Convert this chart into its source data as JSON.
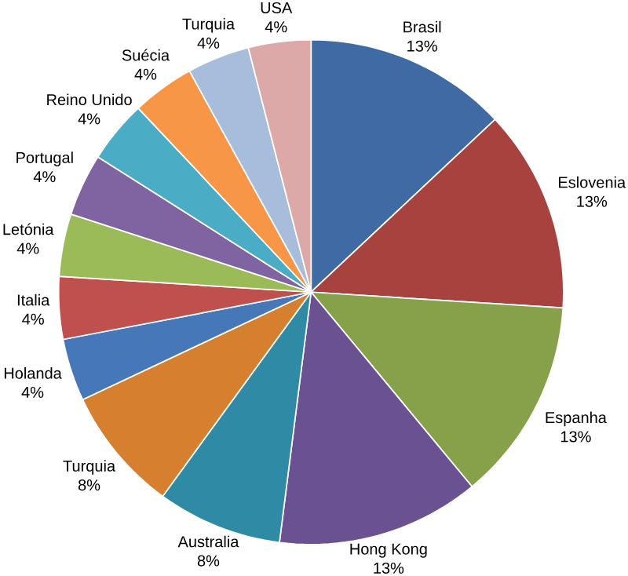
{
  "chart_data": {
    "type": "pie",
    "categories": [
      "Brasil",
      "Eslovenia",
      "Espanha",
      "Hong Kong",
      "Australia",
      "Turquia",
      "Holanda",
      "Italia",
      "Letónia",
      "Portugal",
      "Reino Unido",
      "Suécia",
      "Turquia",
      "USA"
    ],
    "values": [
      13,
      13,
      13,
      13,
      8,
      8,
      4,
      4,
      4,
      4,
      4,
      4,
      4,
      4
    ],
    "value_labels": [
      "13%",
      "13%",
      "13%",
      "13%",
      "8%",
      "8%",
      "4%",
      "4%",
      "4%",
      "4%",
      "4%",
      "4%",
      "4%",
      "4%"
    ],
    "colors": [
      "#3f6aa4",
      "#a8423f",
      "#87a14a",
      "#6a5192",
      "#2e8aa5",
      "#d57f2f",
      "#4677b8",
      "#c0504d",
      "#9bbb59",
      "#8064a2",
      "#4bacc6",
      "#f79646",
      "#a8bddc",
      "#dca9a8"
    ]
  }
}
